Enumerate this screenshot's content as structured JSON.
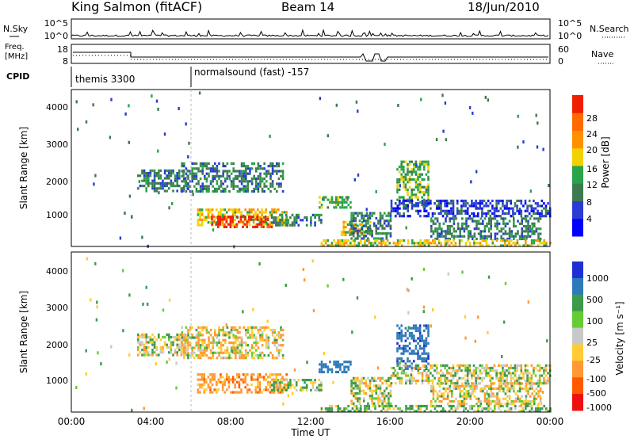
{
  "header": {
    "station": "King Salmon (fitACF)",
    "beam": "Beam 14",
    "date": "18/Jun/2010"
  },
  "left_labels": {
    "nsky": "N.Sky",
    "freq_line1": "Freq.",
    "freq_line2": "[MHz]",
    "cpid": "CPID"
  },
  "right_labels": {
    "nsearch": "N.Search",
    "nave": "Nave"
  },
  "noise_axis": {
    "left_ticks": [
      "10^5",
      "10^0"
    ],
    "right_ticks": [
      "10^5",
      "10^0"
    ]
  },
  "freq_axis": {
    "left_ticks": [
      "18",
      "8"
    ],
    "right_ticks": [
      "60",
      "0"
    ]
  },
  "cpid_panel": {
    "segments": [
      {
        "label": "themis 3300",
        "start_hour": 0,
        "end_hour": 6
      },
      {
        "label": "normalsound (fast) -157",
        "start_hour": 6,
        "end_hour": 24
      }
    ]
  },
  "panels": {
    "power": {
      "ylabel": "Slant Range [km]",
      "yticks": [
        "1000",
        "2000",
        "3000",
        "4000"
      ],
      "colorbar_label": "Power [dB]",
      "colorbar_ticks": [
        "4",
        "8",
        "12",
        "16",
        "20",
        "24",
        "28"
      ],
      "colors": [
        "#0000ff",
        "#2a3cd1",
        "#3d7a4f",
        "#2aa34a",
        "#f1d200",
        "#ff9000",
        "#ff6a00",
        "#ee2000"
      ]
    },
    "velocity": {
      "ylabel": "Slant Range [km]",
      "yticks": [
        "1000",
        "2000",
        "3000",
        "4000"
      ],
      "colorbar_label": "Velocity [m s⁻¹]",
      "colorbar_ticks": [
        "1000",
        "500",
        "100",
        "25",
        "-25",
        "-100",
        "-500",
        "-1000"
      ],
      "colors": [
        "#1f2fd1",
        "#2e7ab8",
        "#3c9a4a",
        "#66cc33",
        "#c8c8c8",
        "#ffcc33",
        "#ff9933",
        "#ff5a00",
        "#ee1010"
      ]
    }
  },
  "xaxis": {
    "title": "Time UT",
    "ticks": [
      "00:00",
      "04:00",
      "08:00",
      "12:00",
      "16:00",
      "20:00",
      "00:00"
    ]
  },
  "chart_data": [
    {
      "type": "heatmap",
      "title": "Power [dB]",
      "xlabel": "Time UT",
      "ylabel": "Slant Range [km]",
      "xlim_hours": [
        0,
        24
      ],
      "ylim_km": [
        180,
        4600
      ],
      "zlim": [
        0,
        30
      ],
      "regions": [
        {
          "t0": 3.3,
          "t1": 5.8,
          "r0": 1750,
          "r1": 2350,
          "level": 8
        },
        {
          "t0": 5.5,
          "t1": 10.6,
          "r0": 1700,
          "r1": 2550,
          "level": 6
        },
        {
          "t0": 6.3,
          "t1": 10.8,
          "r0": 780,
          "r1": 1250,
          "level": 14
        },
        {
          "t0": 7.0,
          "t1": 10.0,
          "r0": 750,
          "r1": 1050,
          "level": 26
        },
        {
          "t0": 10.0,
          "t1": 12.5,
          "r0": 800,
          "r1": 1100,
          "level": 8
        },
        {
          "t0": 12.4,
          "t1": 14.0,
          "r0": 1300,
          "r1": 1600,
          "level": 12
        },
        {
          "t0": 13.5,
          "t1": 15.0,
          "r0": 500,
          "r1": 900,
          "level": 16
        },
        {
          "t0": 14.0,
          "t1": 16.0,
          "r0": 400,
          "r1": 1150,
          "level": 6
        },
        {
          "t0": 16.3,
          "t1": 17.9,
          "r0": 1350,
          "r1": 2600,
          "level": 12
        },
        {
          "t0": 16.0,
          "t1": 24.0,
          "r0": 1000,
          "r1": 1500,
          "level": 5
        },
        {
          "t0": 18.0,
          "t1": 23.5,
          "r0": 400,
          "r1": 1000,
          "level": 8
        },
        {
          "t0": 12.5,
          "t1": 24.0,
          "r0": 180,
          "r1": 380,
          "level": 14
        }
      ]
    },
    {
      "type": "heatmap",
      "title": "Velocity [m s⁻¹]",
      "xlabel": "Time UT",
      "ylabel": "Slant Range [km]",
      "xlim_hours": [
        0,
        24
      ],
      "ylim_km": [
        180,
        4600
      ],
      "regions": [
        {
          "t0": 3.3,
          "t1": 5.8,
          "r0": 1750,
          "r1": 2350,
          "velocity": 0
        },
        {
          "t0": 5.5,
          "t1": 10.6,
          "r0": 1700,
          "r1": 2550,
          "velocity": -50
        },
        {
          "t0": 6.3,
          "t1": 10.8,
          "r0": 750,
          "r1": 1250,
          "velocity": -200
        },
        {
          "t0": 10.0,
          "t1": 12.5,
          "r0": 800,
          "r1": 1100,
          "velocity": 50
        },
        {
          "t0": 12.4,
          "t1": 14.0,
          "r0": 1300,
          "r1": 1600,
          "velocity": 500
        },
        {
          "t0": 14.0,
          "t1": 16.0,
          "r0": 400,
          "r1": 1150,
          "velocity": 0
        },
        {
          "t0": 16.3,
          "t1": 17.9,
          "r0": 1350,
          "r1": 2600,
          "velocity": 600
        },
        {
          "t0": 16.0,
          "t1": 24.0,
          "r0": 1000,
          "r1": 1500,
          "velocity": 0
        },
        {
          "t0": 18.0,
          "t1": 23.5,
          "r0": 400,
          "r1": 1000,
          "velocity": -50
        },
        {
          "t0": 12.5,
          "t1": 24.0,
          "r0": 180,
          "r1": 380,
          "velocity": 80
        }
      ]
    }
  ]
}
